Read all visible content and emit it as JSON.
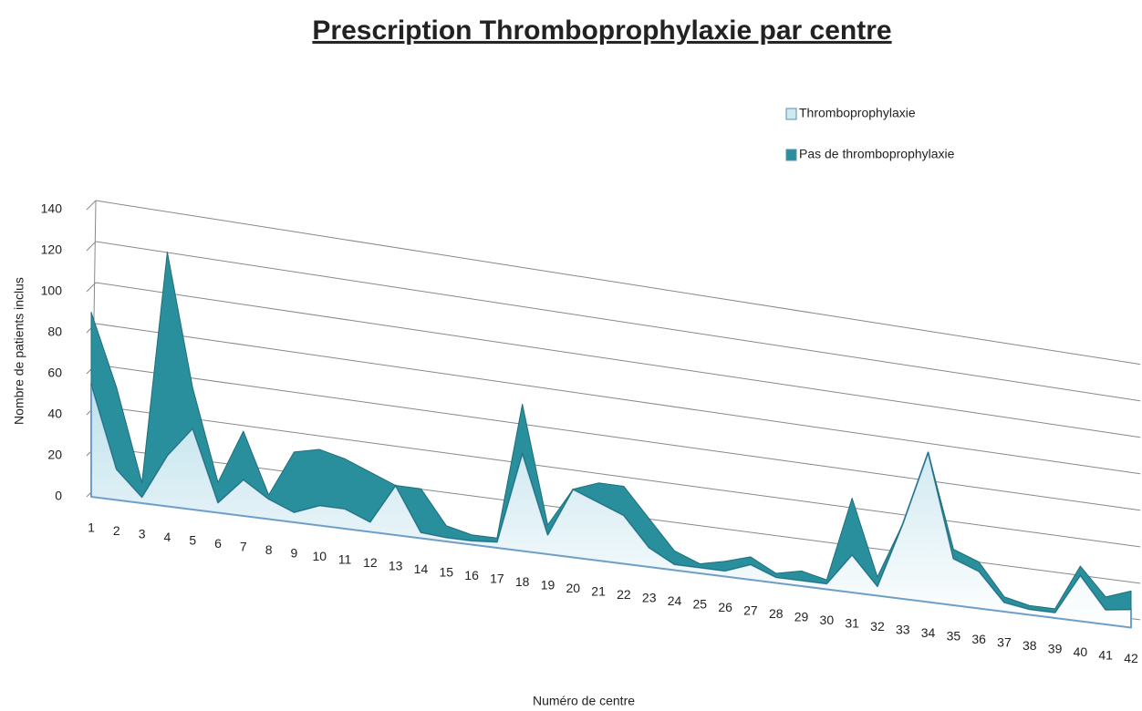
{
  "chart_data": {
    "type": "area",
    "stacked": true,
    "title": "Prescription Thromboprophylaxie par centre",
    "x_label": "Numéro de centre",
    "y_label": "Nombre de patients inclus",
    "categories": [
      "1",
      "2",
      "3",
      "4",
      "5",
      "6",
      "7",
      "8",
      "9",
      "10",
      "11",
      "12",
      "13",
      "14",
      "15",
      "16",
      "17",
      "18",
      "19",
      "20",
      "21",
      "22",
      "23",
      "24",
      "25",
      "26",
      "27",
      "28",
      "29",
      "30",
      "31",
      "32",
      "33",
      "34",
      "35",
      "36",
      "37",
      "38",
      "39",
      "40",
      "41",
      "42"
    ],
    "series": [
      {
        "name": "Thromboprophylaxie",
        "color": "#cfe9f1",
        "values": [
          55,
          15,
          3,
          25,
          40,
          5,
          18,
          10,
          5,
          10,
          10,
          5,
          25,
          3,
          2,
          2,
          3,
          50,
          10,
          35,
          30,
          25,
          10,
          3,
          3,
          3,
          8,
          3,
          3,
          3,
          20,
          5,
          40,
          80,
          25,
          20,
          5,
          3,
          3,
          25,
          8,
          10
        ]
      },
      {
        "name": "Pas de thromboprophylaxie",
        "color": "#2a8f9c",
        "values": [
          35,
          40,
          7,
          100,
          20,
          10,
          24,
          2,
          30,
          28,
          25,
          25,
          0,
          22,
          6,
          3,
          2,
          25,
          5,
          0,
          10,
          15,
          15,
          7,
          2,
          5,
          4,
          2,
          5,
          2,
          30,
          5,
          0,
          0,
          5,
          5,
          3,
          2,
          2,
          5,
          7,
          10
        ]
      }
    ],
    "ylim": [
      0,
      140
    ],
    "yticks": [
      0,
      20,
      40,
      60,
      80,
      100,
      120,
      140
    ],
    "grid": true,
    "legend": "top-right"
  }
}
